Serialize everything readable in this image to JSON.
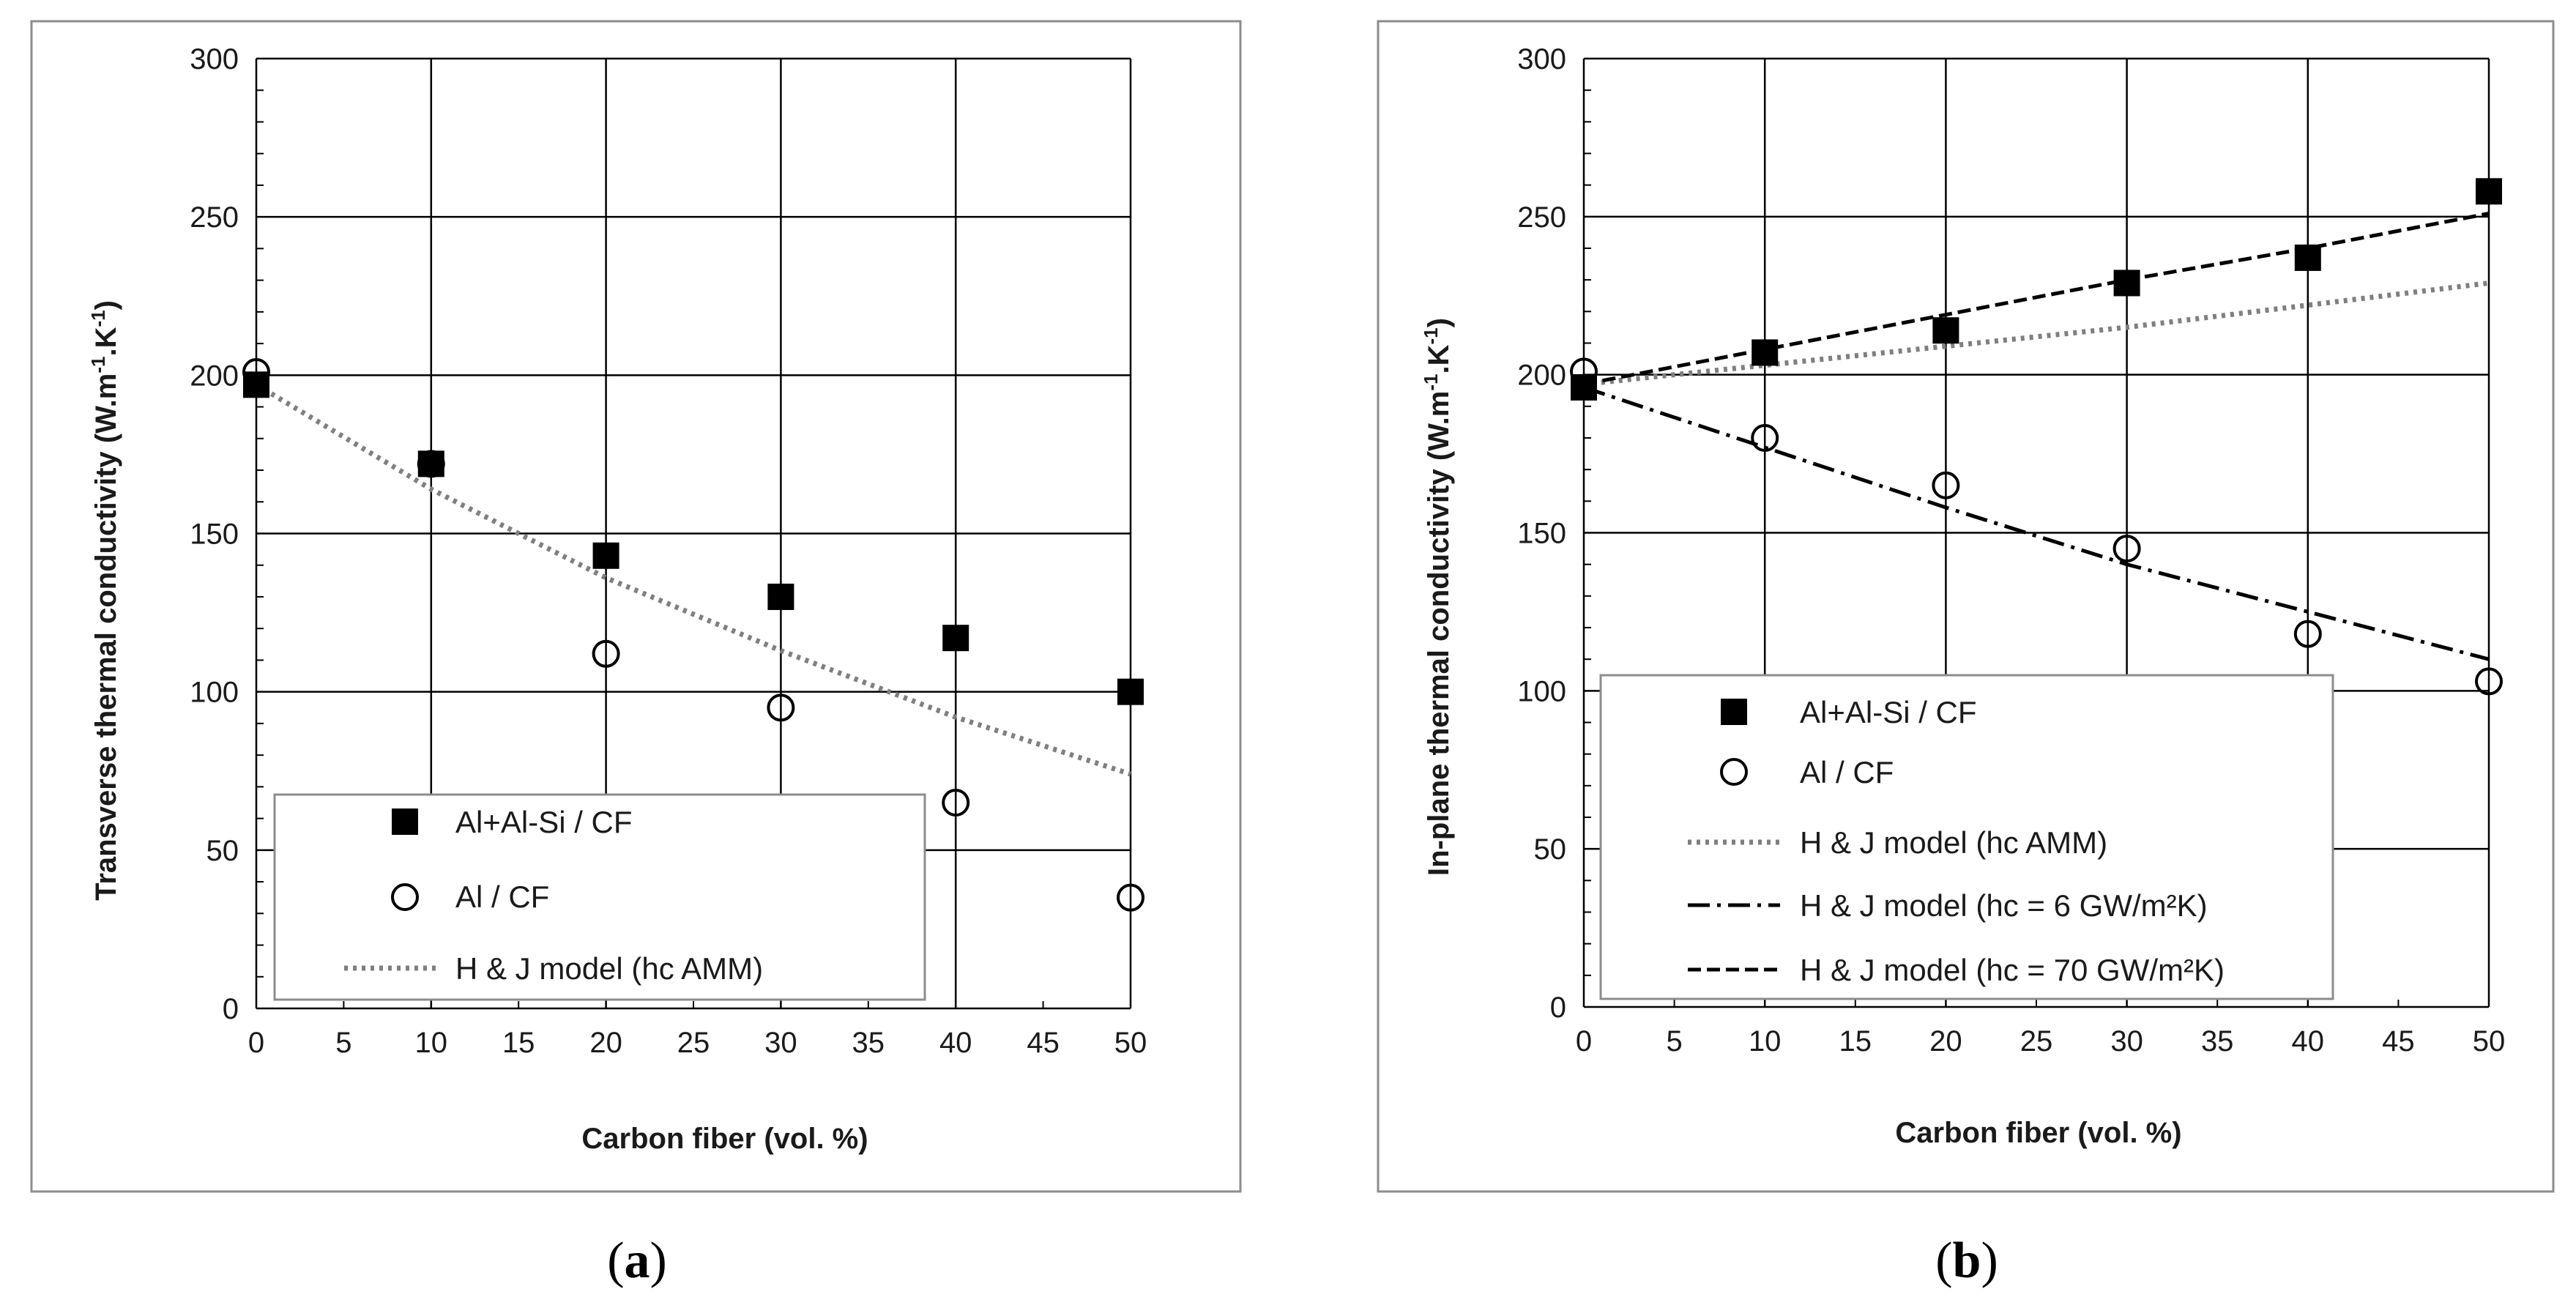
{
  "colors": {
    "frame": "#8c8c8c",
    "grid": "#000000",
    "marker": "#000000",
    "dotted": "#7f7f7f",
    "dashed": "#000000"
  },
  "chart_data": [
    {
      "type": "scatter",
      "caption": {
        "open": "(",
        "letter": "a",
        "close": ")"
      },
      "xlabel": "Carbon fiber (vol. %)",
      "ylabel": {
        "main": "Transverse thermal conductivity (W.m",
        "exp1": "-1",
        "mid": ".K",
        "exp2": "-1",
        "end": ")"
      },
      "xlim": [
        0,
        50
      ],
      "ylim": [
        0,
        300
      ],
      "xticks": [
        0,
        5,
        10,
        15,
        20,
        25,
        30,
        35,
        40,
        45,
        50
      ],
      "yticks": [
        0,
        50,
        100,
        150,
        200,
        250,
        300
      ],
      "grid": true,
      "legend_position": "bottom-left",
      "series": [
        {
          "name": "Al+Al-Si / CF",
          "kind": "square",
          "x": [
            0,
            10,
            20,
            30,
            40,
            50
          ],
          "y": [
            197,
            172,
            143,
            130,
            117,
            100
          ]
        },
        {
          "name": "Al / CF",
          "kind": "circle",
          "x": [
            0,
            10,
            20,
            30,
            40,
            50
          ],
          "y": [
            201,
            172,
            112,
            95,
            65,
            35
          ]
        },
        {
          "name": "H & J model (hc AMM)",
          "kind": "dotted",
          "x": [
            0,
            10,
            20,
            30,
            40,
            50
          ],
          "y": [
            197,
            164,
            136,
            113,
            92,
            74
          ]
        }
      ]
    },
    {
      "type": "scatter",
      "caption": {
        "open": "(",
        "letter": "b",
        "close": ")"
      },
      "xlabel": "Carbon fiber (vol. %)",
      "ylabel": {
        "main": "In-plane thermal conductivity (W.m",
        "exp1": "-1",
        "mid": ".K",
        "exp2": "-1",
        "end": ")"
      },
      "xlim": [
        0,
        50
      ],
      "ylim": [
        0,
        300
      ],
      "xticks": [
        0,
        5,
        10,
        15,
        20,
        25,
        30,
        35,
        40,
        45,
        50
      ],
      "yticks": [
        0,
        50,
        100,
        150,
        200,
        250,
        300
      ],
      "grid": true,
      "legend_position": "bottom-left",
      "series": [
        {
          "name": "Al+Al-Si / CF",
          "kind": "square",
          "x": [
            0,
            10,
            20,
            30,
            40,
            50
          ],
          "y": [
            196,
            207,
            214,
            229,
            237,
            258
          ]
        },
        {
          "name": "Al / CF",
          "kind": "circle",
          "x": [
            0,
            10,
            20,
            30,
            40,
            50
          ],
          "y": [
            201,
            180,
            165,
            145,
            118,
            103
          ]
        },
        {
          "name": "H & J model (hc AMM)",
          "kind": "dotted",
          "x": [
            0,
            10,
            20,
            30,
            40,
            50
          ],
          "y": [
            197,
            203,
            209,
            215,
            222,
            229
          ]
        },
        {
          "name": "H & J model (hc = 6 GW/m²K)",
          "kind": "dashdot",
          "x": [
            0,
            10,
            20,
            30,
            40,
            50
          ],
          "y": [
            196,
            177,
            158,
            140,
            125,
            110
          ]
        },
        {
          "name": "H & J model (hc = 70 GW/m²K)",
          "kind": "dashed",
          "x": [
            0,
            10,
            20,
            30,
            40,
            50
          ],
          "y": [
            197,
            208,
            219,
            230,
            240,
            251
          ]
        }
      ]
    }
  ]
}
